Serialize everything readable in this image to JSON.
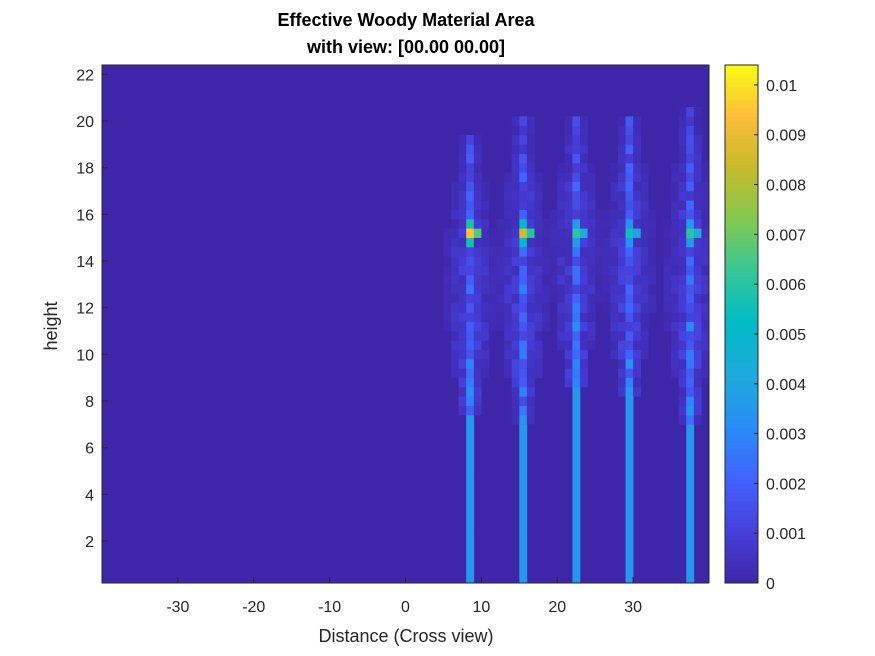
{
  "chart_data": {
    "type": "heatmap",
    "title": "Effective Woody Material Area",
    "subtitle": "with view: [00.00 00.00]",
    "xlabel": "Distance (Cross view)",
    "ylabel": "height",
    "xlim": [
      -40,
      40
    ],
    "ylim": [
      0.2,
      22.4
    ],
    "xticks": [
      -30,
      -20,
      -10,
      0,
      10,
      20,
      30
    ],
    "yticks": [
      2,
      4,
      6,
      8,
      10,
      12,
      14,
      16,
      18,
      20,
      22
    ],
    "colormap": "parula",
    "clim": [
      0,
      0.0104
    ],
    "colorbar_ticks": [
      0,
      0.001,
      0.002,
      0.003,
      0.004,
      0.005,
      0.006,
      0.007,
      0.008,
      0.009,
      0.01
    ],
    "background_value": 0,
    "trunks": [
      {
        "x": 8.2,
        "value": 0.0035,
        "crown_bottom": 7.6,
        "crown_top": 19.5,
        "peak_height": 15.3,
        "peak_value": 0.0095
      },
      {
        "x": 15.3,
        "value": 0.0035,
        "crown_bottom": 7.2,
        "crown_top": 20.2,
        "peak_height": 15.3,
        "peak_value": 0.0085
      },
      {
        "x": 22.6,
        "value": 0.0035,
        "crown_bottom": 8.5,
        "crown_top": 20.4,
        "peak_height": 15.3,
        "peak_value": 0.006
      },
      {
        "x": 29.8,
        "value": 0.0035,
        "crown_bottom": 8.2,
        "crown_top": 20.2,
        "peak_height": 15.3,
        "peak_value": 0.0055
      },
      {
        "x": 37.1,
        "value": 0.0035,
        "crown_bottom": 7.2,
        "crown_top": 20.5,
        "peak_height": 15.3,
        "peak_value": 0.006
      }
    ]
  }
}
